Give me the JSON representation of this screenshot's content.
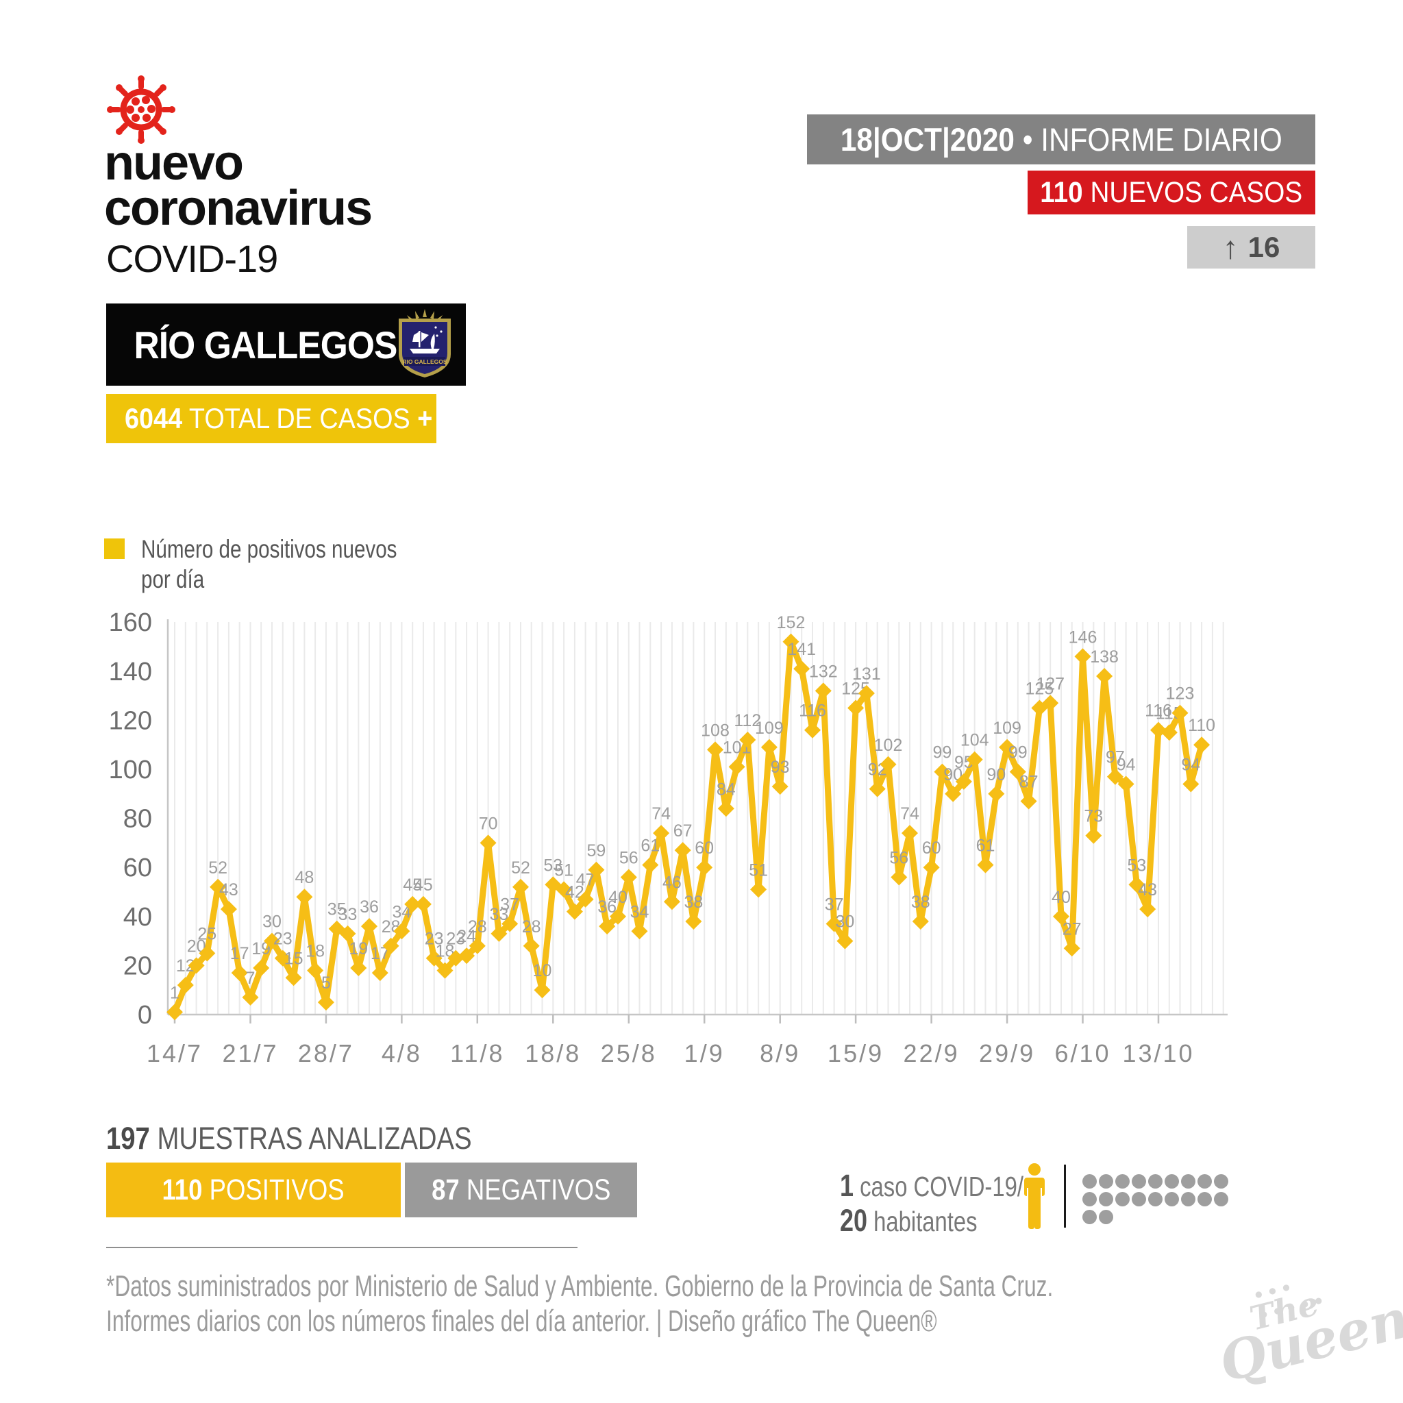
{
  "header": {
    "title_line1": "nuevo",
    "title_line2": "coronavirus",
    "subtitle": "COVID-19",
    "virus_icon_color": "#E3231B",
    "date_banner": {
      "date": "18|OCT|2020",
      "separator": "•",
      "label": "INFORME DIARIO"
    },
    "new_cases_banner": {
      "value": "110",
      "label": "NUEVOS CASOS",
      "color": "#D6181E"
    },
    "delta_badge": {
      "arrow": "↑",
      "value": "16"
    },
    "city_banner": {
      "name": "RÍO GALLEGOS",
      "crest_caption": "RIO GALLEGOS"
    },
    "total_banner": {
      "value": "6044",
      "label": "TOTAL DE CASOS",
      "plus": "+",
      "color": "#EFC40A"
    }
  },
  "legend": {
    "label_line1": "Número de positivos nuevos",
    "label_line2": "por día",
    "swatch_color": "#EFC40A"
  },
  "chart_data": {
    "type": "line",
    "series_name": "Número de positivos nuevos por día",
    "x_start_date": "14/7",
    "x_tick_labels": [
      "14/7",
      "21/7",
      "28/7",
      "4/8",
      "11/8",
      "18/8",
      "25/8",
      "1/9",
      "8/9",
      "15/9",
      "22/9",
      "29/9",
      "6/10",
      "13/10"
    ],
    "x_tick_interval_days": 7,
    "y_ticks": [
      0,
      20,
      40,
      60,
      80,
      100,
      120,
      140,
      160
    ],
    "ylim": [
      0,
      160
    ],
    "grid": "vertical-daily",
    "legend_position": "top-left",
    "line_color": "#F6BE16",
    "label_color": "#9d9d9d",
    "values": [
      1,
      12,
      20,
      25,
      52,
      43,
      17,
      7,
      19,
      30,
      23,
      15,
      48,
      18,
      5,
      35,
      33,
      19,
      36,
      17,
      28,
      34,
      45,
      45,
      23,
      18,
      23,
      24,
      28,
      70,
      33,
      37,
      52,
      28,
      10,
      53,
      51,
      42,
      47,
      59,
      36,
      40,
      56,
      34,
      61,
      74,
      46,
      67,
      38,
      60,
      108,
      84,
      101,
      112,
      51,
      109,
      93,
      152,
      141,
      116,
      132,
      37,
      30,
      125,
      131,
      92,
      102,
      56,
      74,
      38,
      60,
      99,
      90,
      95,
      104,
      61,
      90,
      109,
      99,
      87,
      125,
      127,
      40,
      27,
      146,
      73,
      138,
      97,
      94,
      53,
      43,
      116,
      115,
      123,
      94,
      110
    ]
  },
  "summary": {
    "samples": {
      "value": "197",
      "label": "MUESTRAS ANALIZADAS"
    },
    "positives": {
      "value": "110",
      "label": "POSITIVOS",
      "color": "#F4BC12"
    },
    "negatives": {
      "value": "87",
      "label": "NEGATIVOS",
      "color": "#9A9A9A"
    },
    "ratio": {
      "numerator": "1",
      "numerator_label": "caso COVID-19/",
      "denominator": "20",
      "denominator_label": "habitantes",
      "dots_rows": [
        9,
        9,
        2
      ],
      "dots_total": 20
    }
  },
  "footer": {
    "line1": "*Datos suministrados por Ministerio de Salud y Ambiente. Gobierno de la Provincia de Santa Cruz.",
    "line2": "Informes diarios con los números finales del día anterior. | Diseño gráfico The Queen®",
    "watermark_line1": "The",
    "watermark_line2": "Queen"
  }
}
